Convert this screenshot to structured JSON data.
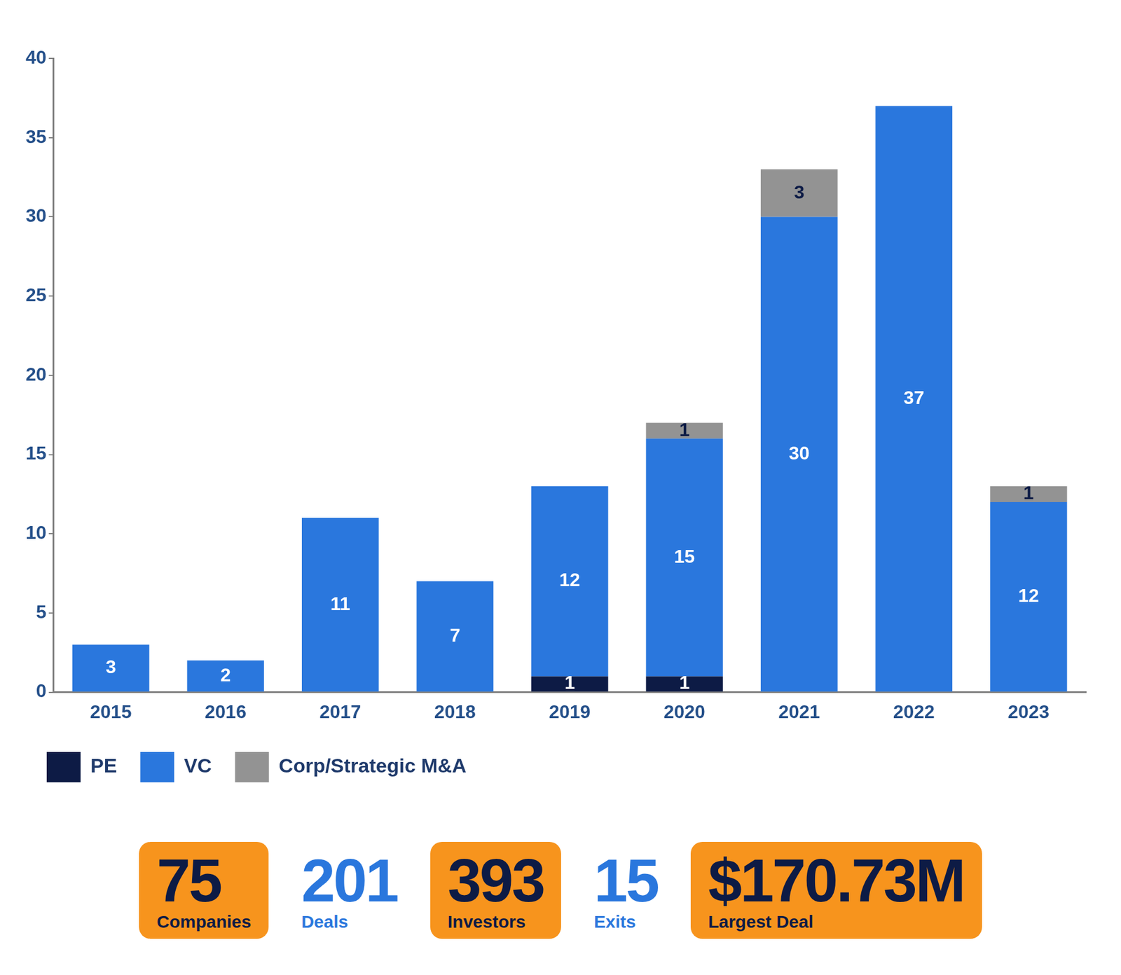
{
  "chart_data": {
    "type": "bar",
    "stacked": true,
    "data_labels": true,
    "grid": false,
    "legend": "bottom-left",
    "categories": [
      "2015",
      "2016",
      "2017",
      "2018",
      "2019",
      "2020",
      "2021",
      "2022",
      "2023"
    ],
    "series": [
      {
        "name": "PE",
        "color": "#0d1b45",
        "values": [
          null,
          null,
          null,
          null,
          1,
          1,
          null,
          null,
          null
        ]
      },
      {
        "name": "VC",
        "color": "#2a77dd",
        "values": [
          3,
          2,
          11,
          7,
          12,
          15,
          30,
          37,
          12
        ]
      },
      {
        "name": "Corp/Strategic M&A",
        "color": "#939393",
        "values": [
          null,
          null,
          null,
          null,
          null,
          1,
          3,
          null,
          1
        ]
      }
    ],
    "ylim": [
      0,
      40
    ],
    "yticks": [
      0,
      5,
      10,
      15,
      20,
      25,
      30,
      35,
      40
    ]
  },
  "stats": [
    {
      "value": "75",
      "label": "Companies",
      "boxed": true
    },
    {
      "value": "201",
      "label": "Deals",
      "boxed": false
    },
    {
      "value": "393",
      "label": "Investors",
      "boxed": true
    },
    {
      "value": "15",
      "label": "Exits",
      "boxed": false
    },
    {
      "value": "$170.73M",
      "label": "Largest Deal",
      "boxed": true
    }
  ]
}
